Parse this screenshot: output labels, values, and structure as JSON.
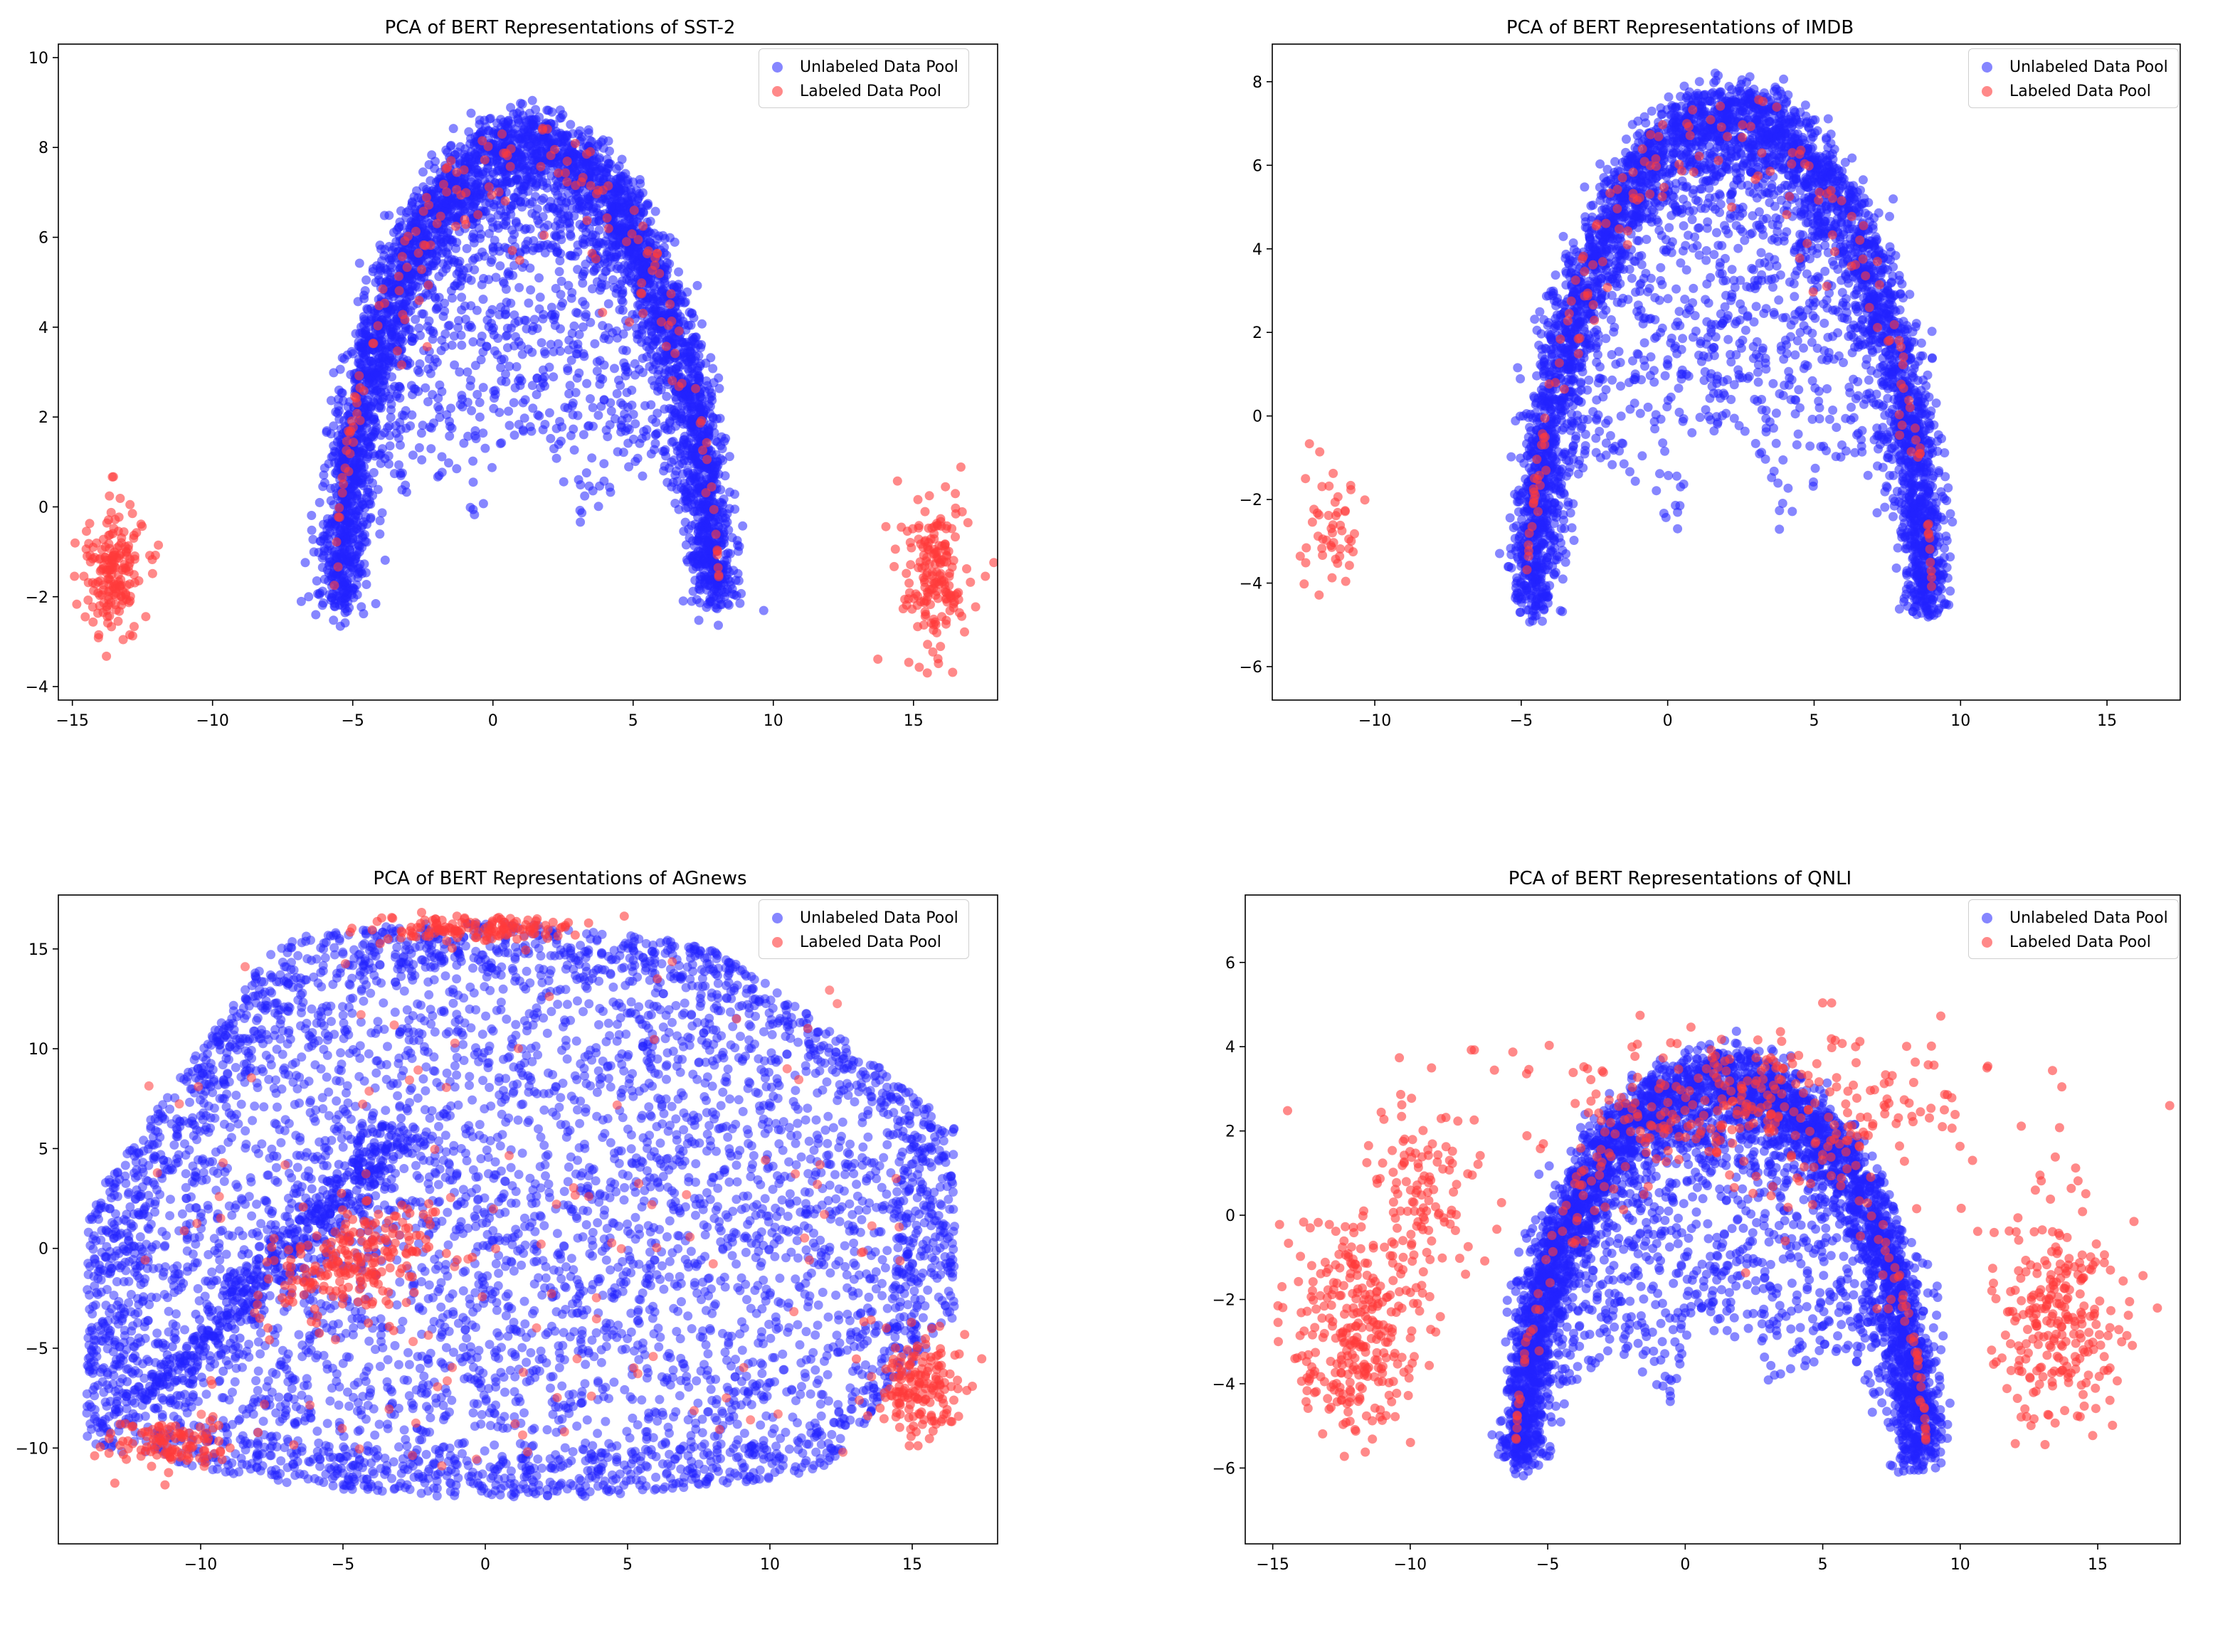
{
  "colors": {
    "unlabeled": "#2222ff",
    "labeled": "#ff3b3b"
  },
  "chart_data": [
    {
      "type": "scatter",
      "title": "PCA of BERT Representations of SST-2",
      "legend": [
        "Unlabeled Data Pool",
        "Labeled Data Pool"
      ],
      "xlim": [
        -15.5,
        18
      ],
      "ylim": [
        -4.3,
        10.3
      ],
      "xticks": [
        -15,
        -10,
        -5,
        0,
        5,
        10,
        15
      ],
      "yticks": [
        -4,
        -2,
        0,
        2,
        4,
        6,
        8,
        10
      ],
      "shape": "arch",
      "arch": {
        "cx": 1.2,
        "cy": -2.6,
        "ax": 14.5,
        "ay": 11.2,
        "thick": 0.45,
        "width": 0.95,
        "sep": 3.8
      },
      "clusters": [
        {
          "x": -13.5,
          "y": -1.5,
          "sx": 0.6,
          "sy": 0.7,
          "n": 180
        },
        {
          "x": 15.7,
          "y": -1.5,
          "sx": 0.6,
          "sy": 0.8,
          "n": 180
        }
      ]
    },
    {
      "type": "scatter",
      "title": "PCA of BERT Representations of IMDB",
      "legend": [
        "Unlabeled Data Pool",
        "Labeled Data Pool"
      ],
      "xlim": [
        -13.5,
        17.5
      ],
      "ylim": [
        -6.8,
        8.9
      ],
      "xticks": [
        -10,
        -5,
        0,
        5,
        10,
        15
      ],
      "yticks": [
        -6,
        -4,
        -2,
        0,
        2,
        4,
        6,
        8
      ],
      "shape": "arch",
      "arch": {
        "cx": 2.1,
        "cy": -5.2,
        "ax": 13.9,
        "ay": 13.0,
        "thick": 0.42,
        "width": 1.0,
        "sep": 3.8
      },
      "clusters": [
        {
          "x": -11.5,
          "y": -2.8,
          "sx": 0.5,
          "sy": 0.8,
          "n": 50
        }
      ]
    },
    {
      "type": "scatter",
      "title": "PCA of BERT Representations of AGnews",
      "legend": [
        "Unlabeled Data Pool",
        "Labeled Data Pool"
      ],
      "xlim": [
        -15,
        18
      ],
      "ylim": [
        -14.8,
        17.7
      ],
      "xticks": [
        -10,
        -5,
        0,
        5,
        10,
        15
      ],
      "yticks": [
        -10,
        -5,
        0,
        5,
        10,
        15
      ],
      "shape": "blob",
      "clusters": [
        {
          "x": -4.5,
          "y": -0.5,
          "sx": 1.8,
          "sy": 1.2,
          "n": 220,
          "rot": 0.6
        },
        {
          "x": -0.2,
          "y": 16.0,
          "sx": 1.8,
          "sy": 0.35,
          "n": 140
        },
        {
          "x": 15.2,
          "y": -7.0,
          "sx": 0.7,
          "sy": 1.3,
          "n": 160
        },
        {
          "x": -11.2,
          "y": -9.8,
          "sx": 1.2,
          "sy": 0.6,
          "n": 110
        }
      ]
    },
    {
      "type": "scatter",
      "title": "PCA of BERT Representations of QNLI",
      "legend": [
        "Unlabeled Data Pool",
        "Labeled Data Pool"
      ],
      "xlim": [
        -16,
        18
      ],
      "ylim": [
        -7.8,
        7.6
      ],
      "xticks": [
        -15,
        -10,
        -5,
        0,
        5,
        10,
        15
      ],
      "yticks": [
        -6,
        -4,
        -2,
        0,
        2,
        4,
        6
      ],
      "shape": "arch",
      "arch": {
        "cx": 1.3,
        "cy": -6.2,
        "ax": 15.0,
        "ay": 10.0,
        "thick": 0.5,
        "width": 1.0,
        "sep": 5.5
      },
      "clusters": [
        {
          "x": -12.0,
          "y": -2.8,
          "sx": 1.2,
          "sy": 1.3,
          "n": 300
        },
        {
          "x": -9.5,
          "y": 0.5,
          "sx": 1.0,
          "sy": 1.0,
          "n": 120
        },
        {
          "x": 3.0,
          "y": 2.5,
          "sx": 4.5,
          "sy": 1.0,
          "n": 260
        },
        {
          "x": 13.5,
          "y": -2.5,
          "sx": 1.2,
          "sy": 1.3,
          "n": 260
        }
      ]
    }
  ]
}
